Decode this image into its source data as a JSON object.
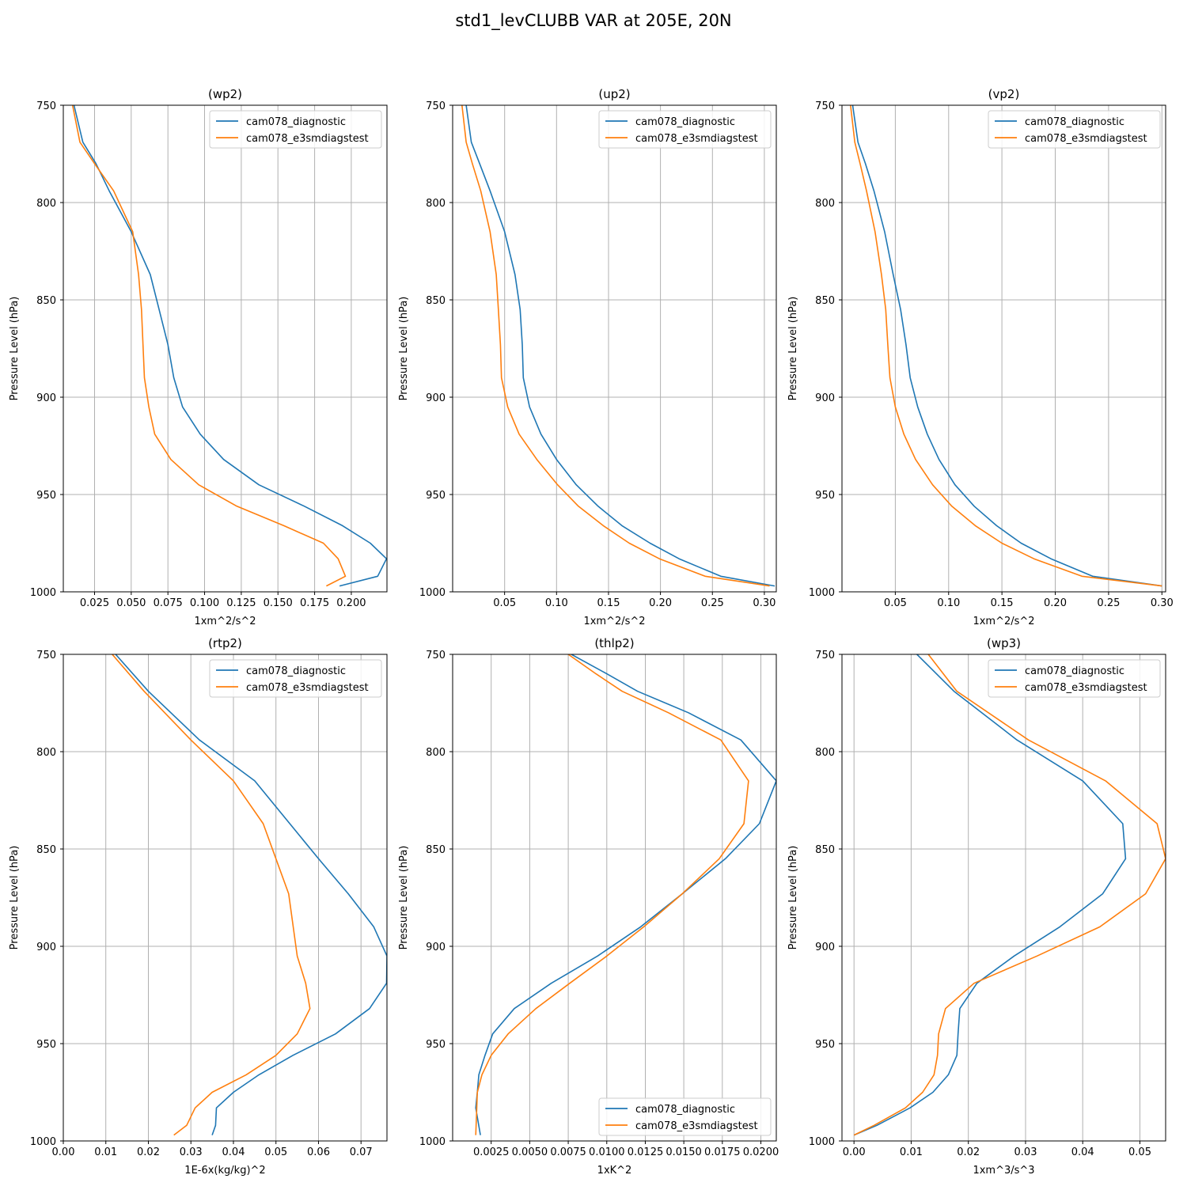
{
  "figure": {
    "title": "std1_levCLUBB VAR at 205E, 20N",
    "ylabel": "Pressure Level (hPa)",
    "series_colors": {
      "cam078_diagnostic": "#1f77b4",
      "cam078_e3smdiagstest": "#ff7f0e"
    },
    "grid_color": "#b0b0b0"
  },
  "chart_data": [
    {
      "type": "line",
      "title": "(wp2)",
      "xlabel": "1xm^2/s^2",
      "ylabel": "Pressure Level (hPa)",
      "xlim": [
        0.0037,
        0.2243
      ],
      "ylim": [
        1000,
        750
      ],
      "xticks": [
        "0.025",
        "0.050",
        "0.075",
        "0.100",
        "0.125",
        "0.150",
        "0.175",
        "0.200"
      ],
      "xtick_values": [
        0.025,
        0.05,
        0.075,
        0.1,
        0.125,
        0.15,
        0.175,
        0.2
      ],
      "yticks": [
        750,
        800,
        850,
        900,
        950,
        1000
      ],
      "grid": true,
      "legend": "upper right",
      "series": [
        {
          "name": "cam078_diagnostic",
          "x": [
            0.011,
            0.017,
            0.026,
            0.035,
            0.05,
            0.063,
            0.069,
            0.075,
            0.079,
            0.085,
            0.097,
            0.113,
            0.137,
            0.168,
            0.194,
            0.213,
            0.224,
            0.218,
            0.192
          ],
          "y": [
            750,
            769,
            780,
            794,
            815,
            837,
            855,
            873,
            890,
            905,
            919,
            932,
            945,
            956,
            966,
            975,
            983,
            992,
            997
          ]
        },
        {
          "name": "cam078_e3smdiagstest",
          "x": [
            0.01,
            0.015,
            0.025,
            0.038,
            0.051,
            0.055,
            0.057,
            0.058,
            0.059,
            0.062,
            0.066,
            0.077,
            0.096,
            0.122,
            0.154,
            0.181,
            0.191,
            0.196,
            0.183
          ],
          "y": [
            750,
            769,
            780,
            794,
            815,
            837,
            855,
            873,
            890,
            905,
            919,
            932,
            945,
            956,
            966,
            975,
            983,
            992,
            997
          ]
        }
      ]
    },
    {
      "type": "line",
      "title": "(up2)",
      "xlabel": "1xm^2/s^2",
      "ylabel": "Pressure Level (hPa)",
      "xlim": [
        0.0,
        0.3115
      ],
      "ylim": [
        1000,
        750
      ],
      "xticks": [
        "0.05",
        "0.10",
        "0.15",
        "0.20",
        "0.25",
        "0.30"
      ],
      "xtick_values": [
        0.05,
        0.1,
        0.15,
        0.2,
        0.25,
        0.3
      ],
      "yticks": [
        750,
        800,
        850,
        900,
        950,
        1000
      ],
      "grid": true,
      "legend": "upper right",
      "series": [
        {
          "name": "cam078_diagnostic",
          "x": [
            0.013,
            0.018,
            0.026,
            0.036,
            0.05,
            0.06,
            0.065,
            0.067,
            0.068,
            0.074,
            0.085,
            0.1,
            0.119,
            0.14,
            0.163,
            0.19,
            0.218,
            0.258,
            0.31
          ],
          "y": [
            750,
            769,
            780,
            794,
            815,
            837,
            855,
            873,
            890,
            905,
            919,
            932,
            945,
            956,
            966,
            975,
            983,
            992,
            997
          ]
        },
        {
          "name": "cam078_e3smdiagstest",
          "x": [
            0.009,
            0.013,
            0.019,
            0.027,
            0.036,
            0.042,
            0.044,
            0.046,
            0.047,
            0.053,
            0.064,
            0.081,
            0.101,
            0.121,
            0.145,
            0.17,
            0.199,
            0.243,
            0.305
          ],
          "y": [
            750,
            769,
            780,
            794,
            815,
            837,
            855,
            873,
            890,
            905,
            919,
            932,
            945,
            956,
            966,
            975,
            983,
            992,
            997
          ]
        }
      ]
    },
    {
      "type": "line",
      "title": "(vp2)",
      "xlabel": "1xm^2/s^2",
      "ylabel": "Pressure Level (hPa)",
      "xlim": [
        0.0,
        0.3035
      ],
      "ylim": [
        1000,
        750
      ],
      "xticks": [
        "0.05",
        "0.10",
        "0.15",
        "0.20",
        "0.25",
        "0.30"
      ],
      "xtick_values": [
        0.05,
        0.1,
        0.15,
        0.2,
        0.25,
        0.3
      ],
      "yticks": [
        750,
        800,
        850,
        900,
        950,
        1000
      ],
      "grid": true,
      "legend": "upper right",
      "series": [
        {
          "name": "cam078_diagnostic",
          "x": [
            0.01,
            0.015,
            0.022,
            0.03,
            0.04,
            0.048,
            0.055,
            0.06,
            0.064,
            0.071,
            0.08,
            0.091,
            0.106,
            0.124,
            0.145,
            0.168,
            0.196,
            0.235,
            0.3
          ],
          "y": [
            750,
            769,
            780,
            794,
            815,
            837,
            855,
            873,
            890,
            905,
            919,
            932,
            945,
            956,
            966,
            975,
            983,
            992,
            997
          ]
        },
        {
          "name": "cam078_e3smdiagstest",
          "x": [
            0.008,
            0.012,
            0.017,
            0.023,
            0.031,
            0.037,
            0.041,
            0.043,
            0.045,
            0.05,
            0.058,
            0.069,
            0.085,
            0.103,
            0.125,
            0.15,
            0.18,
            0.225,
            0.3
          ],
          "y": [
            750,
            769,
            780,
            794,
            815,
            837,
            855,
            873,
            890,
            905,
            919,
            932,
            945,
            956,
            966,
            975,
            983,
            992,
            997
          ]
        }
      ]
    },
    {
      "type": "line",
      "title": "(rtp2)",
      "xlabel": "1E-6x(kg/kg)^2",
      "ylabel": "Pressure Level (hPa)",
      "xlim": [
        0.0,
        0.0761
      ],
      "ylim": [
        1000,
        750
      ],
      "xticks": [
        "0.00",
        "0.01",
        "0.02",
        "0.03",
        "0.04",
        "0.05",
        "0.06",
        "0.07"
      ],
      "xtick_values": [
        0.0,
        0.01,
        0.02,
        0.03,
        0.04,
        0.05,
        0.06,
        0.07
      ],
      "yticks": [
        750,
        800,
        850,
        900,
        950,
        1000
      ],
      "grid": true,
      "legend": "upper right",
      "series": [
        {
          "name": "cam078_diagnostic",
          "x": [
            0.0123,
            0.02,
            0.032,
            0.045,
            0.06,
            0.067,
            0.073,
            0.0761,
            0.076,
            0.072,
            0.064,
            0.054,
            0.046,
            0.04,
            0.036,
            0.0358,
            0.035
          ],
          "y": [
            750,
            769,
            794,
            815,
            855,
            873,
            890,
            905,
            919,
            932,
            945,
            956,
            966,
            975,
            983,
            992,
            997
          ]
        },
        {
          "name": "cam078_e3smdiagstest",
          "x": [
            0.0115,
            0.019,
            0.03,
            0.04,
            0.047,
            0.05,
            0.053,
            0.055,
            0.057,
            0.058,
            0.055,
            0.05,
            0.043,
            0.035,
            0.031,
            0.029,
            0.026
          ],
          "y": [
            750,
            769,
            794,
            815,
            837,
            855,
            873,
            905,
            919,
            932,
            945,
            956,
            966,
            975,
            983,
            992,
            997
          ]
        }
      ]
    },
    {
      "type": "line",
      "title": "(thlp2)",
      "xlabel": "1xK^2",
      "ylabel": "Pressure Level (hPa)",
      "xlim": [
        0.0,
        0.021
      ],
      "ylim": [
        1000,
        750
      ],
      "xticks": [
        "0.0025",
        "0.0050",
        "0.0075",
        "0.0100",
        "0.0125",
        "0.0150",
        "0.0175",
        "0.0200"
      ],
      "xtick_values": [
        0.0025,
        0.005,
        0.0075,
        0.01,
        0.0125,
        0.015,
        0.0175,
        0.02
      ],
      "yticks": [
        750,
        800,
        850,
        900,
        950,
        1000
      ],
      "grid": true,
      "legend": "lower right",
      "series": [
        {
          "name": "cam078_diagnostic",
          "x": [
            0.0077,
            0.01,
            0.012,
            0.0153,
            0.0187,
            0.021,
            0.0199,
            0.0177,
            0.0149,
            0.0122,
            0.0094,
            0.0064,
            0.004,
            0.0026,
            0.0021,
            0.0017,
            0.0016,
            0.0015,
            0.0018
          ],
          "y": [
            750,
            760,
            769,
            780,
            794,
            815,
            837,
            855,
            873,
            890,
            905,
            919,
            932,
            945,
            956,
            966,
            975,
            983,
            997
          ]
        },
        {
          "name": "cam078_e3smdiagstest",
          "x": [
            0.0075,
            0.0093,
            0.011,
            0.014,
            0.0174,
            0.0192,
            0.0189,
            0.0173,
            0.0149,
            0.0124,
            0.01,
            0.0076,
            0.0054,
            0.0036,
            0.0025,
            0.0019,
            0.0016,
            0.0015
          ],
          "y": [
            750,
            760,
            769,
            780,
            794,
            815,
            837,
            855,
            873,
            890,
            905,
            919,
            932,
            945,
            956,
            966,
            975,
            997
          ]
        }
      ]
    },
    {
      "type": "line",
      "title": "(wp3)",
      "xlabel": "1xm^3/s^3",
      "ylabel": "Pressure Level (hPa)",
      "xlim": [
        -0.0021,
        0.0545
      ],
      "ylim": [
        1000,
        750
      ],
      "xticks": [
        "0.00",
        "0.01",
        "0.02",
        "0.03",
        "0.04",
        "0.05"
      ],
      "xtick_values": [
        0.0,
        0.01,
        0.02,
        0.03,
        0.04,
        0.05
      ],
      "yticks": [
        750,
        800,
        850,
        900,
        950,
        1000
      ],
      "grid": true,
      "legend": "upper right",
      "series": [
        {
          "name": "cam078_diagnostic",
          "x": [
            0.011,
            0.0175,
            0.0285,
            0.04,
            0.047,
            0.0475,
            0.0435,
            0.036,
            0.028,
            0.0215,
            0.0185,
            0.0182,
            0.018,
            0.0165,
            0.0138,
            0.0098,
            0.004,
            0.0
          ],
          "y": [
            750,
            769,
            794,
            815,
            837,
            855,
            873,
            890,
            905,
            919,
            932,
            945,
            956,
            966,
            975,
            983,
            992,
            997
          ]
        },
        {
          "name": "cam078_e3smdiagstest",
          "x": [
            0.013,
            0.018,
            0.0305,
            0.044,
            0.053,
            0.0545,
            0.051,
            0.043,
            0.032,
            0.021,
            0.016,
            0.0148,
            0.0146,
            0.014,
            0.012,
            0.009,
            0.0035,
            0.0
          ],
          "y": [
            750,
            769,
            794,
            815,
            837,
            855,
            873,
            890,
            905,
            919,
            932,
            945,
            956,
            966,
            975,
            983,
            992,
            997
          ]
        }
      ]
    }
  ]
}
